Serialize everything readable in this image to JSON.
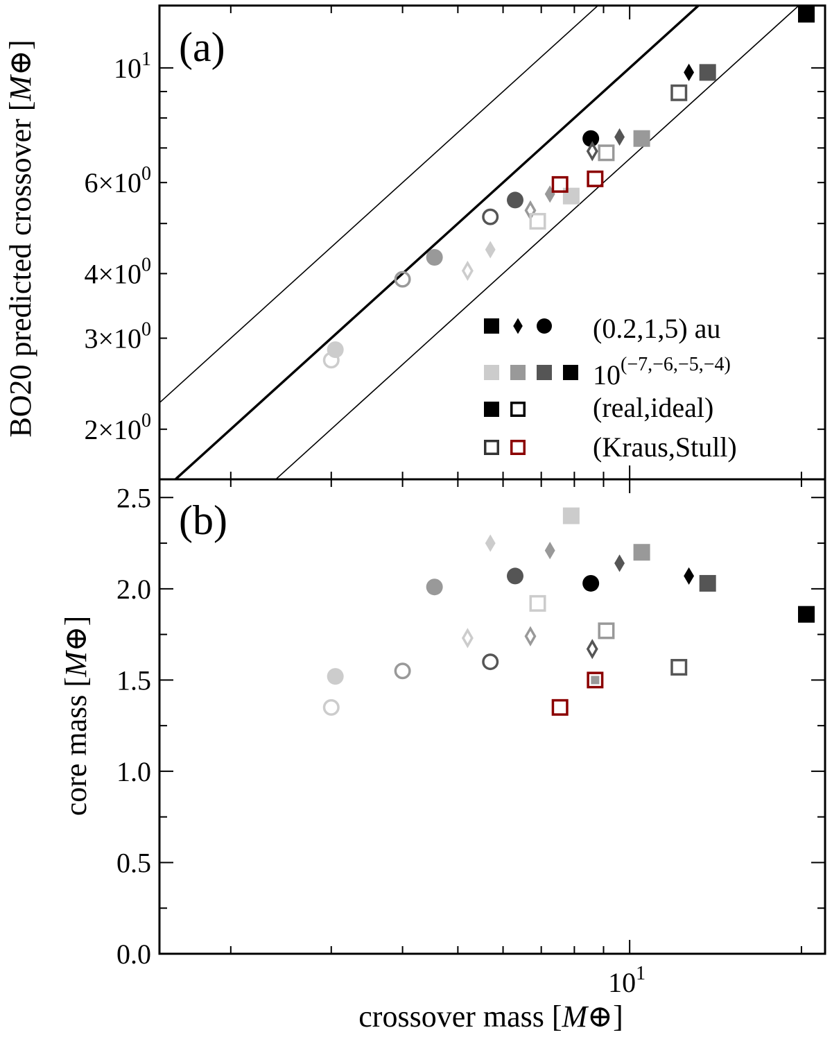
{
  "chart_data": [
    {
      "type": "scatter",
      "panel_label": "(a)",
      "xscale": "log",
      "yscale": "log",
      "xlim": [
        1.5,
        22
      ],
      "ylim": [
        1.6,
        13.2
      ],
      "ylabel": "BO20 predicted crossover",
      "ylabel_unit": "M⊕",
      "y_ticks": [
        {
          "value": 2,
          "mantissa": "2",
          "exponent": "0"
        },
        {
          "value": 3,
          "mantissa": "3",
          "exponent": "0"
        },
        {
          "value": 4,
          "mantissa": "4",
          "exponent": "0"
        },
        {
          "value": 6,
          "mantissa": "6",
          "exponent": "0"
        },
        {
          "value": 10,
          "mantissa": "",
          "exponent": "1"
        }
      ],
      "reference_lines": [
        {
          "name": "one-to-one",
          "factor": 1.0,
          "style": "thick"
        },
        {
          "name": "factor-1.5-above",
          "factor": 1.5,
          "style": "thin"
        },
        {
          "name": "factor-1.5-below",
          "factor": 0.667,
          "style": "thin"
        }
      ],
      "points": [
        {
          "x": 3.05,
          "y": 2.85,
          "marker": "circle",
          "filled": true,
          "color": "#cccccc"
        },
        {
          "x": 3.0,
          "y": 2.72,
          "marker": "circle",
          "filled": false,
          "color": "#cccccc"
        },
        {
          "x": 4.55,
          "y": 4.3,
          "marker": "circle",
          "filled": true,
          "color": "#999999"
        },
        {
          "x": 4.0,
          "y": 3.9,
          "marker": "circle",
          "filled": false,
          "color": "#999999"
        },
        {
          "x": 6.3,
          "y": 5.55,
          "marker": "circle",
          "filled": true,
          "color": "#555555"
        },
        {
          "x": 5.7,
          "y": 5.15,
          "marker": "circle",
          "filled": false,
          "color": "#555555"
        },
        {
          "x": 8.55,
          "y": 7.3,
          "marker": "circle",
          "filled": true,
          "color": "#000000"
        },
        {
          "x": 5.7,
          "y": 4.45,
          "marker": "diamond",
          "filled": true,
          "color": "#cccccc"
        },
        {
          "x": 5.2,
          "y": 4.05,
          "marker": "diamond",
          "filled": false,
          "color": "#cccccc"
        },
        {
          "x": 7.25,
          "y": 5.7,
          "marker": "diamond",
          "filled": true,
          "color": "#999999"
        },
        {
          "x": 6.7,
          "y": 5.3,
          "marker": "diamond",
          "filled": false,
          "color": "#999999"
        },
        {
          "x": 9.6,
          "y": 7.35,
          "marker": "diamond",
          "filled": true,
          "color": "#555555"
        },
        {
          "x": 8.6,
          "y": 6.9,
          "marker": "diamond",
          "filled": false,
          "color": "#555555"
        },
        {
          "x": 12.7,
          "y": 9.8,
          "marker": "diamond",
          "filled": true,
          "color": "#000000"
        },
        {
          "x": 7.9,
          "y": 5.65,
          "marker": "square",
          "filled": true,
          "color": "#cccccc"
        },
        {
          "x": 6.9,
          "y": 5.05,
          "marker": "square",
          "filled": false,
          "color": "#cccccc"
        },
        {
          "x": 10.5,
          "y": 7.3,
          "marker": "square",
          "filled": true,
          "color": "#999999"
        },
        {
          "x": 9.1,
          "y": 6.85,
          "marker": "square",
          "filled": false,
          "color": "#999999"
        },
        {
          "x": 13.7,
          "y": 9.8,
          "marker": "square",
          "filled": true,
          "color": "#555555"
        },
        {
          "x": 12.2,
          "y": 8.95,
          "marker": "square",
          "filled": false,
          "color": "#555555"
        },
        {
          "x": 20.4,
          "y": 12.7,
          "marker": "square",
          "filled": true,
          "color": "#000000"
        },
        {
          "x": 7.55,
          "y": 5.95,
          "marker": "square",
          "filled": false,
          "color": "#8b0000"
        },
        {
          "x": 8.7,
          "y": 6.1,
          "marker": "square",
          "filled": false,
          "color": "#8b0000"
        }
      ],
      "legend": {
        "placement": "lower-right",
        "entries": [
          {
            "label": "(0.2,1,5) au",
            "markers": [
              {
                "marker": "square",
                "filled": true,
                "color": "#000000"
              },
              {
                "marker": "diamond",
                "filled": true,
                "color": "#000000"
              },
              {
                "marker": "circle",
                "filled": true,
                "color": "#000000"
              }
            ]
          },
          {
            "label": "10",
            "label_superscript": "(−7,−6,−5,−4)",
            "markers": [
              {
                "marker": "square",
                "filled": true,
                "color": "#cccccc"
              },
              {
                "marker": "square",
                "filled": true,
                "color": "#999999"
              },
              {
                "marker": "square",
                "filled": true,
                "color": "#555555"
              },
              {
                "marker": "square",
                "filled": true,
                "color": "#000000"
              }
            ]
          },
          {
            "label": "(real,ideal)",
            "markers": [
              {
                "marker": "square",
                "filled": true,
                "color": "#000000"
              },
              {
                "marker": "square",
                "filled": false,
                "color": "#000000"
              }
            ]
          },
          {
            "label": "(Kraus,Stull)",
            "markers": [
              {
                "marker": "square",
                "filled": false,
                "color": "#333333"
              },
              {
                "marker": "square",
                "filled": false,
                "color": "#8b0000"
              }
            ]
          }
        ]
      }
    },
    {
      "type": "scatter",
      "panel_label": "(b)",
      "xscale": "log",
      "yscale": "linear",
      "xlim": [
        1.5,
        22
      ],
      "ylim": [
        0.0,
        2.6
      ],
      "xlabel": "crossover mass",
      "ylabel": "core mass",
      "unit": "M⊕",
      "x_ticks": [
        {
          "value": 10,
          "mantissa": "10",
          "exponent": "1"
        }
      ],
      "y_ticks": [
        {
          "value": 0.0,
          "label": "0.0"
        },
        {
          "value": 0.5,
          "label": "0.5"
        },
        {
          "value": 1.0,
          "label": "1.0"
        },
        {
          "value": 1.5,
          "label": "1.5"
        },
        {
          "value": 2.0,
          "label": "2.0"
        },
        {
          "value": 2.5,
          "label": "2.5"
        }
      ],
      "points": [
        {
          "x": 3.05,
          "y": 1.52,
          "marker": "circle",
          "filled": true,
          "color": "#cccccc"
        },
        {
          "x": 3.0,
          "y": 1.35,
          "marker": "circle",
          "filled": false,
          "color": "#cccccc"
        },
        {
          "x": 4.55,
          "y": 2.01,
          "marker": "circle",
          "filled": true,
          "color": "#999999"
        },
        {
          "x": 4.0,
          "y": 1.55,
          "marker": "circle",
          "filled": false,
          "color": "#999999"
        },
        {
          "x": 6.3,
          "y": 2.07,
          "marker": "circle",
          "filled": true,
          "color": "#555555"
        },
        {
          "x": 5.7,
          "y": 1.6,
          "marker": "circle",
          "filled": false,
          "color": "#555555"
        },
        {
          "x": 8.55,
          "y": 2.03,
          "marker": "circle",
          "filled": true,
          "color": "#000000"
        },
        {
          "x": 5.7,
          "y": 2.25,
          "marker": "diamond",
          "filled": true,
          "color": "#cccccc"
        },
        {
          "x": 5.2,
          "y": 1.73,
          "marker": "diamond",
          "filled": false,
          "color": "#cccccc"
        },
        {
          "x": 7.25,
          "y": 2.21,
          "marker": "diamond",
          "filled": true,
          "color": "#999999"
        },
        {
          "x": 6.7,
          "y": 1.74,
          "marker": "diamond",
          "filled": false,
          "color": "#999999"
        },
        {
          "x": 9.6,
          "y": 2.14,
          "marker": "diamond",
          "filled": true,
          "color": "#555555"
        },
        {
          "x": 8.6,
          "y": 1.67,
          "marker": "diamond",
          "filled": false,
          "color": "#555555"
        },
        {
          "x": 12.7,
          "y": 2.07,
          "marker": "diamond",
          "filled": true,
          "color": "#000000"
        },
        {
          "x": 7.9,
          "y": 2.4,
          "marker": "square",
          "filled": true,
          "color": "#cccccc"
        },
        {
          "x": 6.9,
          "y": 1.92,
          "marker": "square",
          "filled": false,
          "color": "#cccccc"
        },
        {
          "x": 10.5,
          "y": 2.2,
          "marker": "square",
          "filled": true,
          "color": "#999999"
        },
        {
          "x": 9.1,
          "y": 1.77,
          "marker": "square",
          "filled": false,
          "color": "#999999"
        },
        {
          "x": 13.7,
          "y": 2.03,
          "marker": "square",
          "filled": true,
          "color": "#555555"
        },
        {
          "x": 12.2,
          "y": 1.57,
          "marker": "square",
          "filled": false,
          "color": "#555555"
        },
        {
          "x": 20.4,
          "y": 1.86,
          "marker": "square",
          "filled": true,
          "color": "#000000"
        },
        {
          "x": 7.55,
          "y": 1.35,
          "marker": "square",
          "filled": false,
          "color": "#8b0000"
        },
        {
          "x": 8.7,
          "y": 1.5,
          "marker": "square",
          "filled": false,
          "color": "#8b0000"
        },
        {
          "x": 8.7,
          "y": 1.5,
          "marker": "square",
          "filled": true,
          "color": "#999999",
          "scale": 0.5
        }
      ]
    }
  ]
}
